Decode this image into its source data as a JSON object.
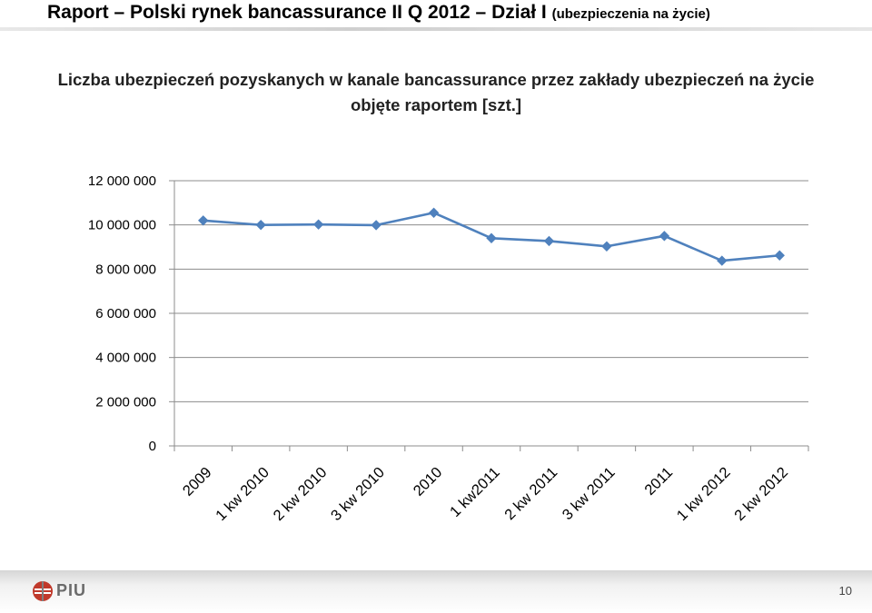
{
  "header": {
    "title": "Raport – Polski rynek bancassurance II Q 2012 – Dział I",
    "subtitle": "(ubezpieczenia na życie)"
  },
  "chart_data": {
    "type": "line",
    "title": "Liczba ubezpieczeń  pozyskanych w kanale bancassurance przez zakłady ubezpieczeń na życie objęte raportem [szt.]",
    "xlabel": "",
    "ylabel": "",
    "categories": [
      "2009",
      "1 kw 2010",
      "2 kw 2010",
      "3 kw 2010",
      "2010",
      "1 kw2011",
      "2 kw 2011",
      "3 kw 2011",
      "2011",
      "1 kw 2012",
      "2 kw 2012"
    ],
    "series": [
      {
        "values": [
          10200000,
          10000000,
          10020000,
          9990000,
          10550000,
          9400000,
          9270000,
          9030000,
          9500000,
          8380000,
          8620000
        ],
        "color": "#4f81bd"
      }
    ],
    "ylim": [
      0,
      12000000
    ],
    "yticks": [
      0,
      2000000,
      4000000,
      6000000,
      8000000,
      10000000,
      12000000
    ],
    "ytick_labels": [
      "0",
      "2 000 000",
      "4 000 000",
      "6 000 000",
      "8 000 000",
      "10 000 000",
      "12 000 000"
    ],
    "grid": true,
    "legend": "none"
  },
  "footer": {
    "logo_text": "PIU",
    "page_number": "10",
    "logo_colors": [
      "#c0392b",
      "#7f7f7f"
    ]
  }
}
